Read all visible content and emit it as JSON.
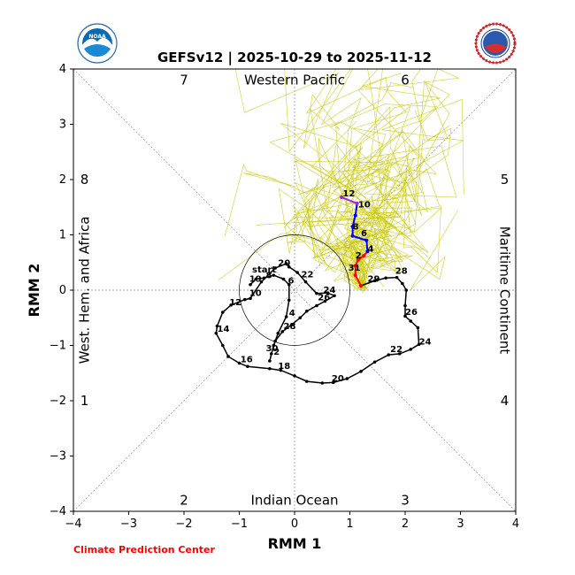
{
  "chart_data": {
    "type": "line",
    "title": "GEFSv12 | 2025-10-29 to 2025-11-12",
    "xlabel": "RMM 1",
    "ylabel": "RMM 2",
    "xlim": [
      -4,
      4
    ],
    "ylim": [
      -4,
      4
    ],
    "ticks": [
      -4,
      -3,
      -2,
      -1,
      0,
      1,
      2,
      3,
      4
    ],
    "tick_labels": [
      "−4",
      "−3",
      "−2",
      "−1",
      "0",
      "1",
      "2",
      "3",
      "4"
    ],
    "regions": {
      "top": "Western Pacific",
      "bottom": "Indian Ocean",
      "left": "West. Hem. and Africa",
      "right": "Maritime Continent"
    },
    "phases": {
      "p1": "1",
      "p2": "2",
      "p3": "3",
      "p4": "4",
      "p5": "5",
      "p6": "6",
      "p7": "7",
      "p8": "8"
    },
    "unit_circle_radius": 1,
    "start_label": "start",
    "observed": {
      "color": "#000000",
      "points": [
        [
          -0.8,
          0.1
        ],
        [
          -0.7,
          0.2
        ],
        [
          -0.55,
          0.22
        ],
        [
          -0.38,
          0.27
        ],
        [
          -0.2,
          0.2
        ],
        [
          -0.1,
          0.1
        ],
        [
          -0.1,
          -0.18
        ],
        [
          -0.15,
          -0.48
        ],
        [
          -0.3,
          -0.78
        ],
        [
          -0.38,
          -1.0
        ],
        [
          -0.45,
          -1.28
        ],
        [
          -0.42,
          -1.15
        ],
        [
          -0.35,
          -0.92
        ],
        [
          -0.22,
          -0.75
        ],
        [
          -0.05,
          -0.62
        ],
        [
          0.1,
          -0.5
        ],
        [
          0.22,
          -0.38
        ],
        [
          0.4,
          -0.28
        ],
        [
          0.55,
          -0.2
        ],
        [
          0.72,
          -0.1
        ],
        [
          0.6,
          -0.05
        ],
        [
          0.4,
          -0.06
        ],
        [
          0.2,
          0.15
        ],
        [
          0.05,
          0.32
        ],
        [
          -0.1,
          0.42
        ],
        [
          -0.15,
          0.48
        ],
        [
          -0.35,
          0.4
        ],
        [
          -0.6,
          0.15
        ],
        [
          -0.8,
          -0.15
        ],
        [
          -0.9,
          -0.17
        ],
        [
          -1.15,
          -0.27
        ],
        [
          -1.3,
          -0.4
        ],
        [
          -1.4,
          -0.65
        ],
        [
          -1.42,
          -0.78
        ],
        [
          -1.3,
          -1.0
        ],
        [
          -1.2,
          -1.2
        ],
        [
          -1.0,
          -1.32
        ],
        [
          -0.85,
          -1.38
        ],
        [
          -0.45,
          -1.42
        ],
        [
          -0.25,
          -1.45
        ],
        [
          0.0,
          -1.55
        ],
        [
          0.22,
          -1.65
        ],
        [
          0.5,
          -1.68
        ],
        [
          0.7,
          -1.67
        ],
        [
          0.95,
          -1.6
        ],
        [
          1.2,
          -1.47
        ],
        [
          1.45,
          -1.3
        ],
        [
          1.7,
          -1.17
        ],
        [
          1.9,
          -1.15
        ],
        [
          2.1,
          -1.07
        ],
        [
          2.25,
          -0.98
        ],
        [
          2.23,
          -0.68
        ],
        [
          2.1,
          -0.56
        ],
        [
          2.0,
          -0.47
        ],
        [
          2.0,
          -0.28
        ],
        [
          2.02,
          0.0
        ],
        [
          1.95,
          0.12
        ],
        [
          1.85,
          0.23
        ],
        [
          1.65,
          0.22
        ],
        [
          1.45,
          0.17
        ],
        [
          1.2,
          0.08
        ]
      ],
      "day_labels": [
        {
          "text": "19",
          "x": -0.82,
          "y": 0.15
        },
        {
          "text": "8",
          "x": -0.52,
          "y": 0.22
        },
        {
          "text": "6",
          "x": -0.12,
          "y": 0.12
        },
        {
          "text": "20",
          "x": -0.3,
          "y": 0.44
        },
        {
          "text": "22",
          "x": 0.12,
          "y": 0.23
        },
        {
          "text": "10",
          "x": -0.82,
          "y": -0.1
        },
        {
          "text": "12",
          "x": -1.18,
          "y": -0.27
        },
        {
          "text": "14",
          "x": -1.4,
          "y": -0.75
        },
        {
          "text": "16",
          "x": -0.98,
          "y": -1.3
        },
        {
          "text": "18",
          "x": -0.3,
          "y": -1.42
        },
        {
          "text": "20",
          "x": 0.67,
          "y": -1.65
        },
        {
          "text": "22",
          "x": 1.73,
          "y": -1.12
        },
        {
          "text": "24",
          "x": 2.25,
          "y": -0.98
        },
        {
          "text": "26",
          "x": 2.0,
          "y": -0.45
        },
        {
          "text": "28",
          "x": 1.82,
          "y": 0.3
        },
        {
          "text": "24",
          "x": 0.52,
          "y": -0.05
        },
        {
          "text": "26",
          "x": 0.42,
          "y": -0.18
        },
        {
          "text": "4",
          "x": -0.1,
          "y": -0.46
        },
        {
          "text": "28",
          "x": -0.2,
          "y": -0.7
        },
        {
          "text": "30",
          "x": -0.52,
          "y": -1.1
        },
        {
          "text": "2",
          "x": -0.38,
          "y": -1.17
        }
      ]
    },
    "forecast": {
      "colors": {
        "week1": "#ff0000",
        "week2_a": "#0000ff",
        "week2_b": "#a020f0"
      },
      "points": [
        [
          1.2,
          0.08
        ],
        [
          1.1,
          0.27
        ],
        [
          1.1,
          0.44
        ],
        [
          1.15,
          0.55
        ],
        [
          1.25,
          0.62
        ],
        [
          1.32,
          0.7
        ],
        [
          1.3,
          0.9
        ],
        [
          1.05,
          0.98
        ],
        [
          1.05,
          1.15
        ],
        [
          1.1,
          1.35
        ],
        [
          1.13,
          1.57
        ],
        [
          0.85,
          1.68
        ]
      ],
      "labels": [
        {
          "text": "29",
          "x": 1.32,
          "y": 0.15
        },
        {
          "text": "31",
          "x": 0.97,
          "y": 0.35
        },
        {
          "text": "2",
          "x": 1.1,
          "y": 0.58
        },
        {
          "text": "4",
          "x": 1.32,
          "y": 0.7
        },
        {
          "text": "6",
          "x": 1.2,
          "y": 0.98
        },
        {
          "text": "8",
          "x": 1.05,
          "y": 1.1
        },
        {
          "text": "10",
          "x": 1.15,
          "y": 1.5
        },
        {
          "text": "12",
          "x": 0.87,
          "y": 1.7
        }
      ]
    },
    "ensemble_color": "#c8c800"
  },
  "footer": {
    "credit": "Climate Prediction Center",
    "credit_color": "#ff0000"
  },
  "logos": {
    "left": "noaa-logo",
    "left_text": "NOAA",
    "right": "nws-logo",
    "right_text": "NATIONAL WEATHER SERVICE"
  }
}
